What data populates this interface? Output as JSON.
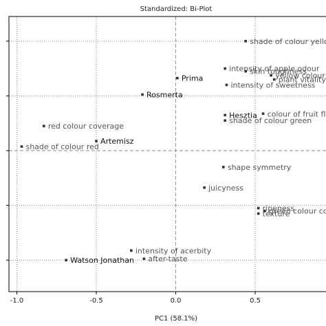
{
  "chart_data": {
    "type": "scatter",
    "title": "Standardized: Bi-Plot",
    "xlabel": "PC1 (58.1%)",
    "ylabel": "",
    "xlim": [
      -1.05,
      0.95
    ],
    "ylim": [
      -1.03,
      0.98
    ],
    "x_ticks": [
      "-1.0",
      "-0.5",
      "0.0",
      "0.5"
    ],
    "x_tick_values": [
      -1.0,
      -0.5,
      0.0,
      0.5
    ],
    "y_tick_values": [
      -0.8,
      -0.4,
      0.0,
      0.4,
      0.8
    ],
    "grid": true,
    "grid_style": "dotted",
    "points": [
      {
        "label": "shade of colour yellow",
        "x": 0.44,
        "y": 0.8,
        "kind": "variable"
      },
      {
        "label": "intensity of apple odour",
        "x": 0.31,
        "y": 0.6,
        "kind": "variable"
      },
      {
        "label": "skin toughness",
        "x": 0.44,
        "y": 0.58,
        "kind": "variable"
      },
      {
        "label": "yellow colour coverage",
        "x": 0.6,
        "y": 0.55,
        "kind": "variable"
      },
      {
        "label": "plant vitality",
        "x": 0.62,
        "y": 0.52,
        "kind": "variable"
      },
      {
        "label": "intensity of sweetness",
        "x": 0.32,
        "y": 0.48,
        "kind": "variable"
      },
      {
        "label": "Prima",
        "x": 0.01,
        "y": 0.53,
        "kind": "object"
      },
      {
        "label": "Rosmerta",
        "x": -0.21,
        "y": 0.41,
        "kind": "object"
      },
      {
        "label": "Hesztia",
        "x": 0.31,
        "y": 0.26,
        "kind": "object"
      },
      {
        "label": "colour of fruit flesh",
        "x": 0.55,
        "y": 0.27,
        "kind": "variable"
      },
      {
        "label": "shade of colour green",
        "x": 0.31,
        "y": 0.22,
        "kind": "variable"
      },
      {
        "label": "red colour coverage",
        "x": -0.83,
        "y": 0.18,
        "kind": "variable"
      },
      {
        "label": "Artemisz",
        "x": -0.5,
        "y": 0.07,
        "kind": "object"
      },
      {
        "label": "shade of colour red",
        "x": -0.97,
        "y": 0.03,
        "kind": "variable"
      },
      {
        "label": "shape symmetry",
        "x": 0.3,
        "y": -0.12,
        "kind": "variable"
      },
      {
        "label": "juicyness",
        "x": 0.18,
        "y": -0.27,
        "kind": "variable"
      },
      {
        "label": "ripeness",
        "x": 0.52,
        "y": -0.42,
        "kind": "variable"
      },
      {
        "label": "green colour coverage",
        "x": 0.56,
        "y": -0.44,
        "kind": "variable"
      },
      {
        "label": "texture",
        "x": 0.52,
        "y": -0.46,
        "kind": "variable"
      },
      {
        "label": "intensity of acerbity",
        "x": -0.28,
        "y": -0.73,
        "kind": "variable"
      },
      {
        "label": "Watson Jonathan",
        "x": -0.69,
        "y": -0.8,
        "kind": "object"
      },
      {
        "label": "after-taste",
        "x": -0.2,
        "y": -0.79,
        "kind": "variable"
      }
    ]
  },
  "colors": {
    "marker": "#333333",
    "variable_text": "#555555",
    "object_text": "#111111",
    "grid": "#888888",
    "frame": "#000000"
  }
}
